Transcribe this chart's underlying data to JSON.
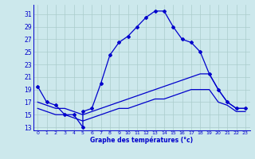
{
  "bg_color": "#cce8ec",
  "grid_color": "#aacccc",
  "line_color": "#0000cc",
  "title": "Graphe des températures (°c)",
  "xlim": [
    -0.5,
    23.5
  ],
  "ylim": [
    12.5,
    32.5
  ],
  "yticks": [
    13,
    15,
    17,
    19,
    21,
    23,
    25,
    27,
    29,
    31
  ],
  "xticks": [
    0,
    1,
    2,
    3,
    4,
    5,
    6,
    7,
    8,
    9,
    10,
    11,
    12,
    13,
    14,
    15,
    16,
    17,
    18,
    19,
    20,
    21,
    22,
    23
  ],
  "line1_x": [
    0,
    1,
    2,
    3,
    4,
    5,
    5,
    6,
    7,
    8,
    9,
    10,
    11,
    12,
    13,
    14,
    15,
    16,
    17,
    18,
    19,
    20,
    21,
    22,
    23
  ],
  "line1_y": [
    19.5,
    17.0,
    16.5,
    15.0,
    15.0,
    13.0,
    15.5,
    16.0,
    20.0,
    24.5,
    26.5,
    27.5,
    29.0,
    30.5,
    31.5,
    31.5,
    29.0,
    27.0,
    26.5,
    25.0,
    21.5,
    19.0,
    17.0,
    16.0,
    16.0
  ],
  "line2_x": [
    0,
    1,
    2,
    3,
    4,
    5,
    6,
    7,
    8,
    9,
    10,
    11,
    12,
    13,
    14,
    15,
    16,
    17,
    18,
    19,
    20,
    21,
    22,
    23
  ],
  "line2_y": [
    17.0,
    16.5,
    16.0,
    16.0,
    15.5,
    15.0,
    15.5,
    16.0,
    16.5,
    17.0,
    17.5,
    18.0,
    18.5,
    19.0,
    19.5,
    20.0,
    20.5,
    21.0,
    21.5,
    21.5,
    19.0,
    17.0,
    16.0,
    16.0
  ],
  "line3_x": [
    0,
    1,
    2,
    3,
    4,
    5,
    6,
    7,
    8,
    9,
    10,
    11,
    12,
    13,
    14,
    15,
    16,
    17,
    18,
    19,
    20,
    21,
    22,
    23
  ],
  "line3_y": [
    16.0,
    15.5,
    15.0,
    15.0,
    14.5,
    14.0,
    14.5,
    15.0,
    15.5,
    16.0,
    16.0,
    16.5,
    17.0,
    17.5,
    17.5,
    18.0,
    18.5,
    19.0,
    19.0,
    19.0,
    17.0,
    16.5,
    15.5,
    15.5
  ]
}
